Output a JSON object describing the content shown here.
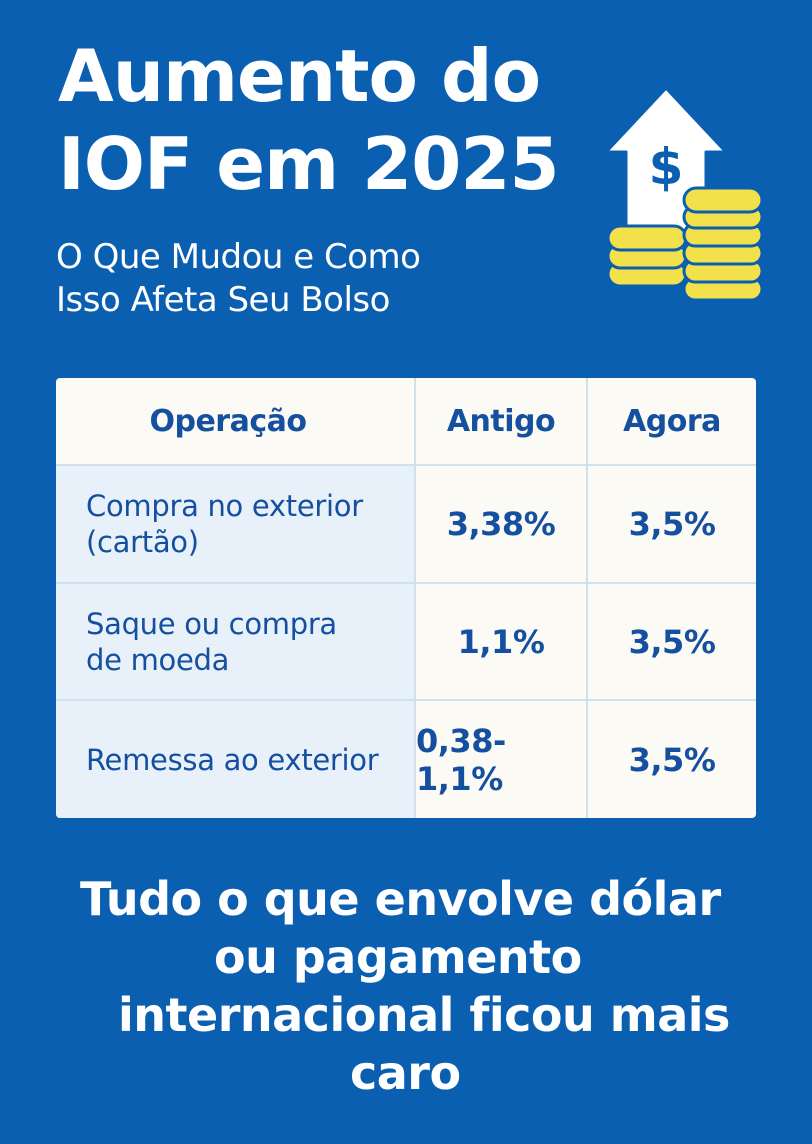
{
  "title": {
    "line1": "Aumento do",
    "line2": "IOF em 2025"
  },
  "subtitle": {
    "line1": "O Que Mudou e Como",
    "line2": "Isso Afeta Seu Bolso"
  },
  "table": {
    "headers": [
      "Operação",
      "Antigo",
      "Agora"
    ],
    "rows": [
      {
        "operation": [
          "Compra no exterior",
          "(cartão)"
        ],
        "old": "3,38%",
        "new": "3,5%"
      },
      {
        "operation": [
          "Saque ou compra",
          "de moeda"
        ],
        "old": "1,1%",
        "new": "3,5%"
      },
      {
        "operation": [
          "Remessa ao exterior"
        ],
        "old": "0,38-1,1%",
        "new": "3,5%"
      }
    ]
  },
  "footer": {
    "lines": [
      "Tudo o que envolve dólar",
      "ou pagamento",
      "internacional ficou mais",
      "caro"
    ]
  },
  "illustration": {
    "icons": [
      "dollar-arrow-up-icon",
      "coin-stack-icon"
    ],
    "dollar_symbol": "$"
  },
  "colors": {
    "background": "#0b5fb0",
    "table_text": "#1550a0",
    "coin": "#f2e14a",
    "white": "#ffffff"
  }
}
